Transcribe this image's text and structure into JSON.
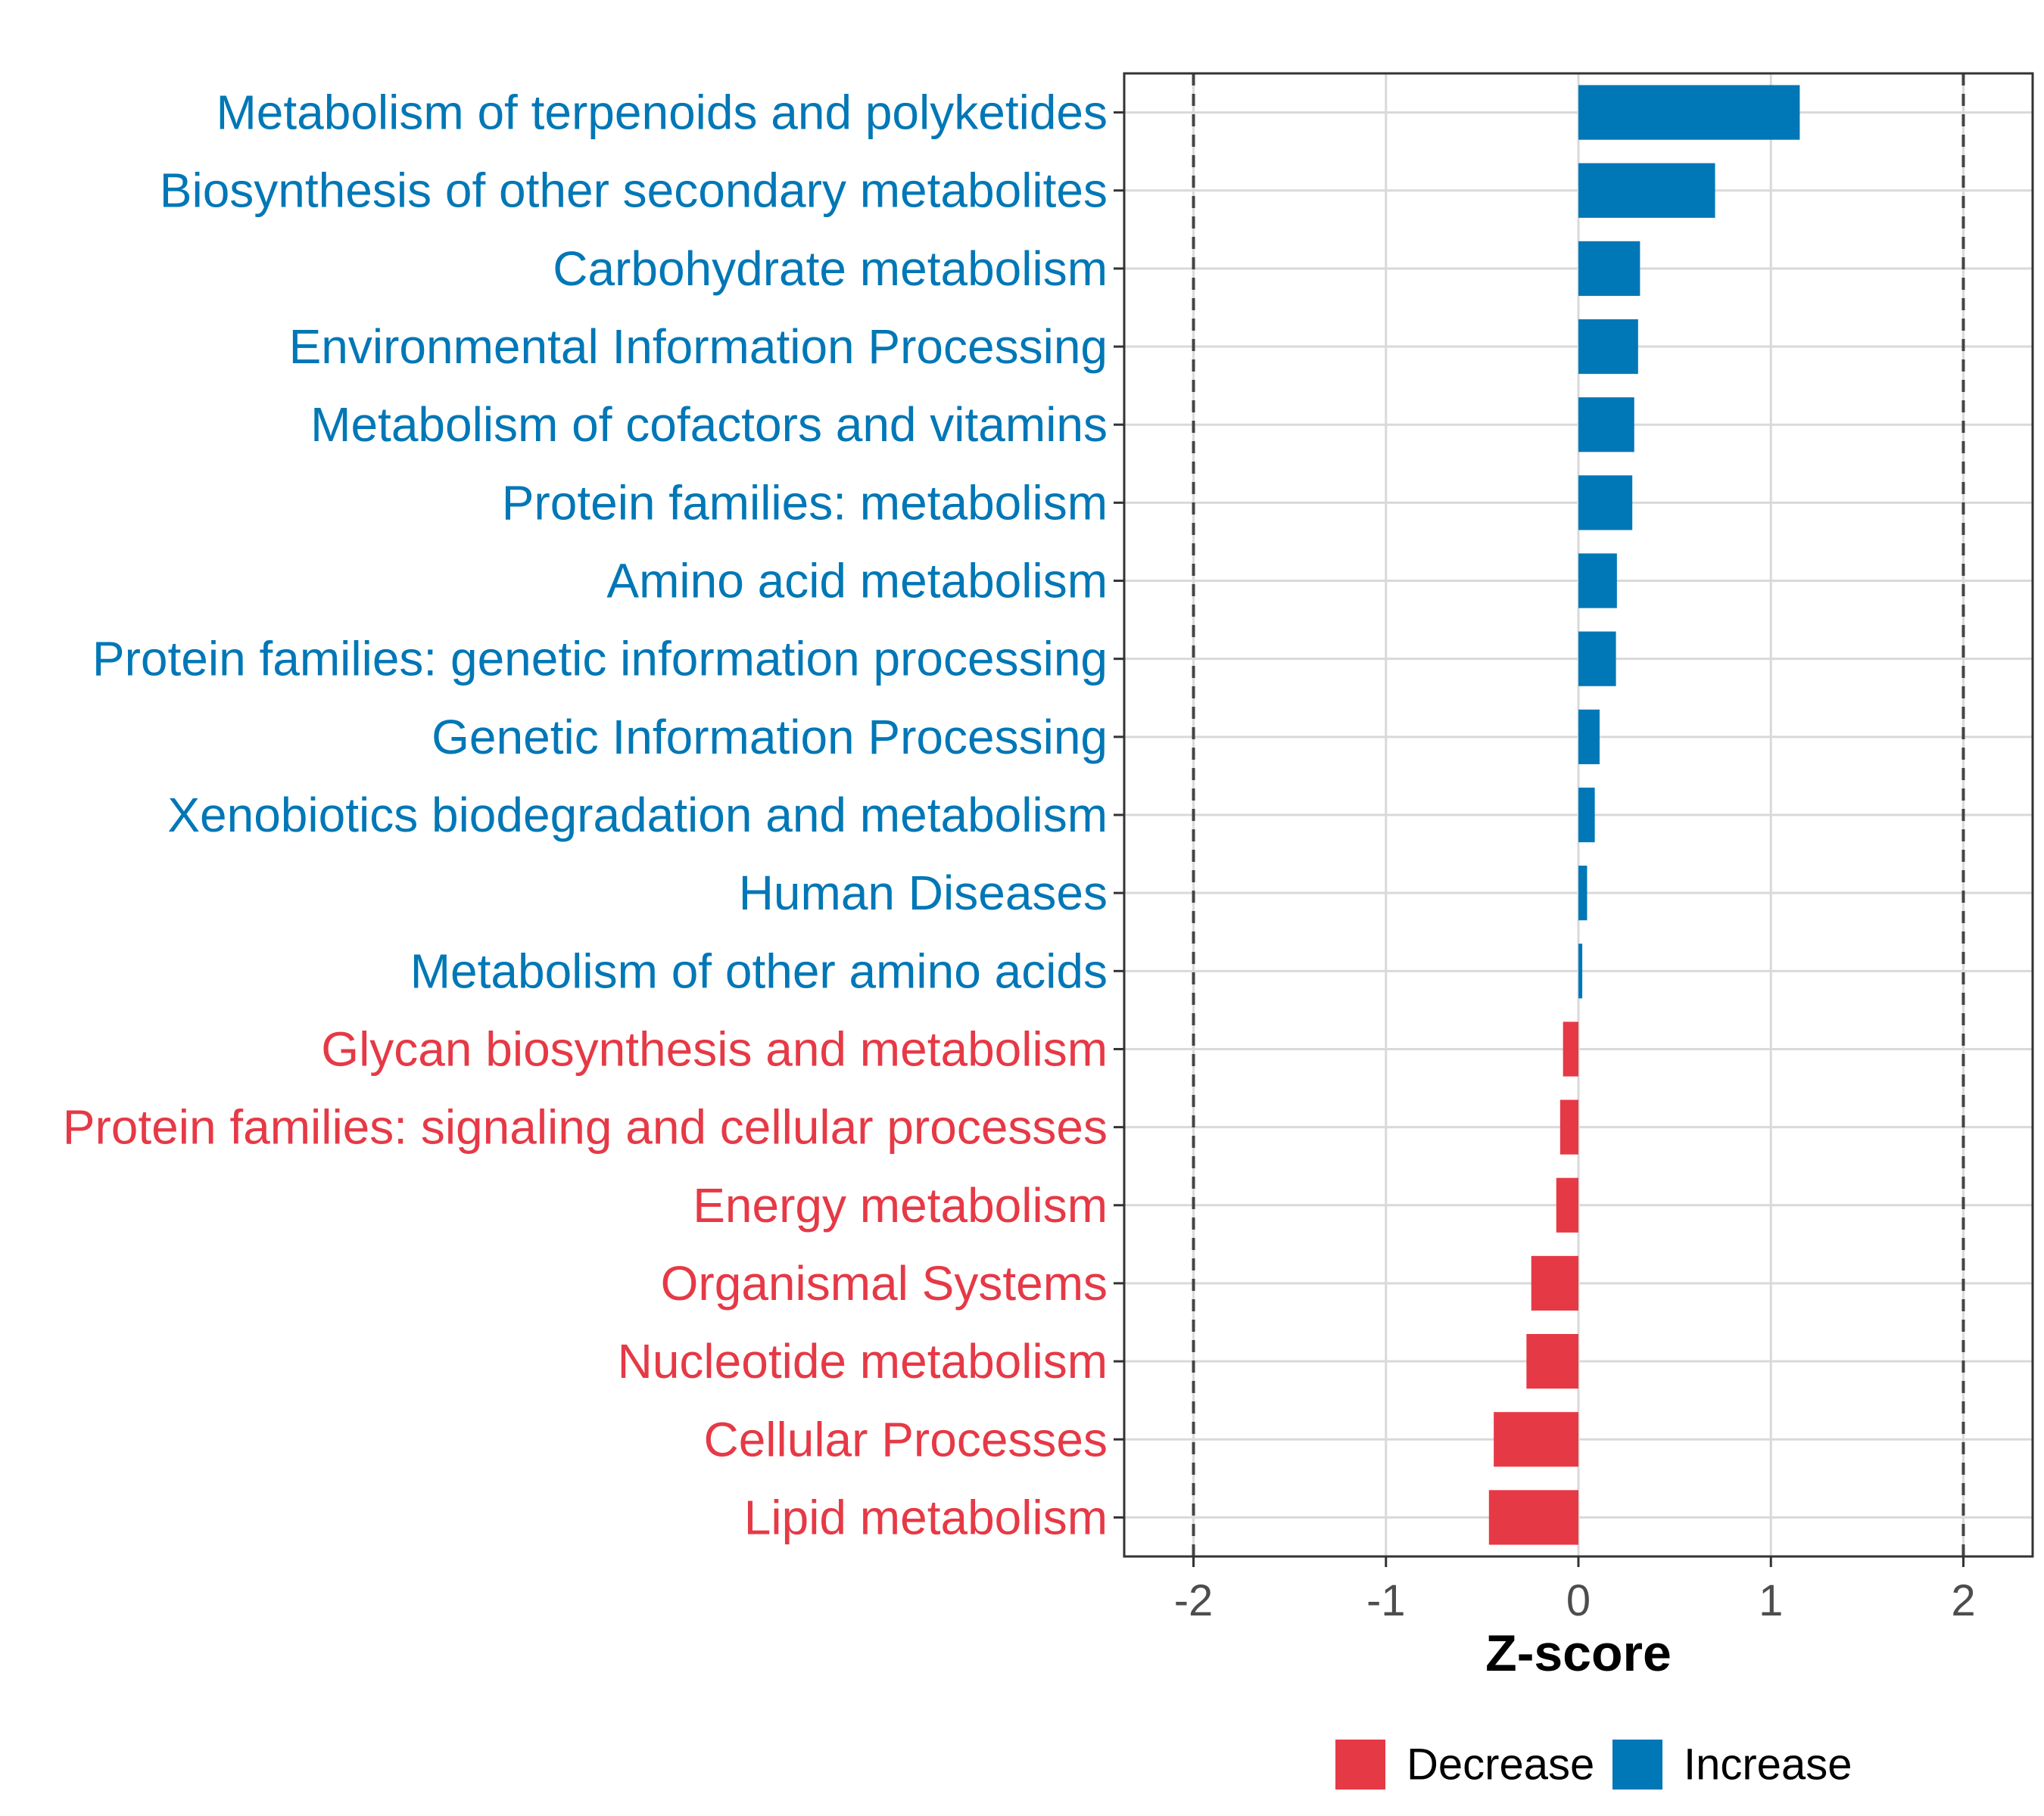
{
  "chart_data": {
    "type": "bar",
    "orientation": "horizontal",
    "title": "",
    "xlabel": "Z-score",
    "ylabel": "",
    "xlim": [
      -2.36,
      2.36
    ],
    "xticks": [
      -2,
      -1,
      0,
      1,
      2
    ],
    "xtick_labels": [
      "-2",
      "-1",
      "0",
      "1",
      "2"
    ],
    "threshold_lines": [
      -2,
      2
    ],
    "grid": true,
    "categories": [
      "Metabolism of terpenoids and polyketides",
      "Biosynthesis of other secondary metabolites",
      "Carbohydrate metabolism",
      "Environmental Information Processing",
      "Metabolism of cofactors and vitamins",
      "Protein families: metabolism",
      "Amino acid metabolism",
      "Protein families: genetic information processing",
      "Genetic Information Processing",
      "Xenobiotics biodegradation and metabolism",
      "Human Diseases",
      "Metabolism of other amino acids",
      "Glycan biosynthesis and metabolism",
      "Protein families: signaling and cellular processes",
      "Energy metabolism",
      "Organismal Systems",
      "Nucleotide metabolism",
      "Cellular Processes",
      "Lipid metabolism"
    ],
    "values": [
      1.15,
      0.71,
      0.32,
      0.31,
      0.29,
      0.28,
      0.2,
      0.195,
      0.11,
      0.085,
      0.045,
      0.02,
      -0.08,
      -0.095,
      -0.115,
      -0.245,
      -0.27,
      -0.44,
      -0.465
    ],
    "legend": {
      "position": "bottom",
      "entries": [
        {
          "label": "Decrease",
          "color": "#e63946"
        },
        {
          "label": "Increase",
          "color": "#0077b6"
        }
      ]
    }
  },
  "colors": {
    "increase": "#0077b6",
    "decrease": "#e63946"
  }
}
